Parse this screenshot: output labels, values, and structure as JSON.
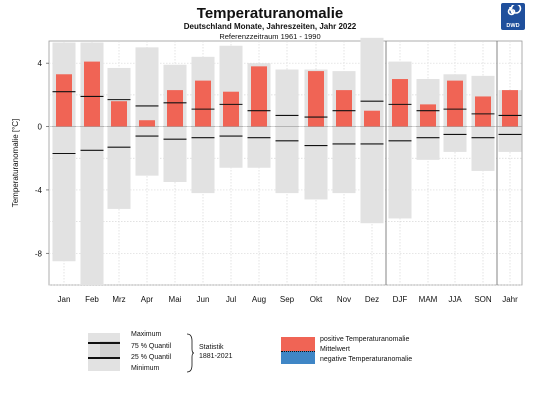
{
  "header": {
    "title": "Temperaturanomalie",
    "subtitle": "Deutschland Monate, Jahreszeiten, Jahr 2022",
    "reference": "Referenzzeitraum 1961 - 1990",
    "logo_text": "DWD",
    "logo_color": "#1f4f9c"
  },
  "chart_data": {
    "type": "bar",
    "ylabel": "Temperaturanomalie [°C]",
    "xlabel": "",
    "ylim": [
      -10,
      5.4
    ],
    "yticks": [
      4,
      0,
      -4,
      -8
    ],
    "grid": true,
    "categories": [
      "Jan",
      "Feb",
      "Mrz",
      "Apr",
      "Mai",
      "Jun",
      "Jul",
      "Aug",
      "Sep",
      "Okt",
      "Nov",
      "Dez",
      "DJF",
      "MAM",
      "JJA",
      "SON",
      "Jahr"
    ],
    "groups": [
      {
        "from": 0,
        "to": 11
      },
      {
        "from": 12,
        "to": 15
      },
      {
        "from": 16,
        "to": 16
      }
    ],
    "statistics_1881_2021": {
      "maximum": [
        5.3,
        5.3,
        3.7,
        5.0,
        3.9,
        4.4,
        5.1,
        4.0,
        3.6,
        3.6,
        3.5,
        5.6,
        4.1,
        3.0,
        3.3,
        3.2,
        2.3
      ],
      "quantile75": [
        2.2,
        1.9,
        1.7,
        1.3,
        1.5,
        1.1,
        1.4,
        1.0,
        0.7,
        0.6,
        1.0,
        1.6,
        1.4,
        1.0,
        1.1,
        0.8,
        0.7
      ],
      "quantile25": [
        -1.7,
        -1.5,
        -1.3,
        -0.6,
        -0.8,
        -0.7,
        -0.6,
        -0.7,
        -0.9,
        -1.2,
        -1.1,
        -1.1,
        -0.9,
        -0.7,
        -0.5,
        -0.7,
        -0.5
      ],
      "minimum": [
        -8.5,
        -10.0,
        -5.2,
        -3.1,
        -3.5,
        -4.2,
        -2.6,
        -2.6,
        -4.2,
        -4.6,
        -4.2,
        -6.1,
        -5.8,
        -2.1,
        -1.6,
        -2.8,
        -1.6
      ]
    },
    "anomaly_2022": [
      3.3,
      4.1,
      1.6,
      0.4,
      2.3,
      2.9,
      2.2,
      3.8,
      0.0,
      3.5,
      2.3,
      1.0,
      3.0,
      1.4,
      2.9,
      1.9,
      2.3
    ],
    "colors": {
      "positive": "#f06455",
      "negative": "#3f86c6",
      "range": "#e2e2e2",
      "quantile": "#111111",
      "grid": "#d8d8d8"
    },
    "legend": {
      "maximum": "Maximum",
      "q75": "75 % Quantil",
      "q25": "25 % Quantil",
      "minimum": "Minimum",
      "statistik": "Statistik",
      "statistik_period": "1881-2021",
      "positive": "positive Temperaturanomalie",
      "mittelwert": "Mittelwert",
      "negative": "negative Temperaturanomalie"
    }
  }
}
